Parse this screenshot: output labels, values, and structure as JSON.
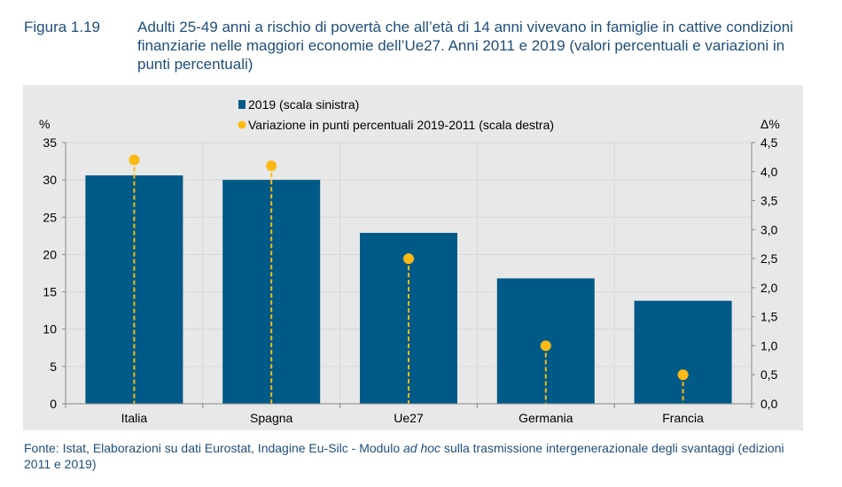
{
  "figure_label": "Figura 1.19",
  "title": "Adulti 25-49 anni a rischio di povertà che all’età di 14 anni vivevano in famiglie in cattive condizioni finanziarie nelle maggiori economie dell’Ue27. Anni 2011 e 2019 (valori percentuali e variazioni in punti percentuali)",
  "source_prefix": "Fonte: Istat, Elaborazioni su dati Eurostat, Indagine Eu-Silc - Modulo ",
  "source_italic": "ad hoc",
  "source_suffix": " sulla trasmissione intergenerazionale degli svantaggi (edizioni 2011 e 2019)",
  "chart_data": {
    "type": "bar+dot",
    "categories": [
      "Italia",
      "Spagna",
      "Ue27",
      "Germania",
      "Francia"
    ],
    "series": [
      {
        "name": "2019 (scala sinistra)",
        "type": "bar",
        "axis": "left",
        "values": [
          30.6,
          30.0,
          22.9,
          16.8,
          13.8
        ],
        "color": "#005a87"
      },
      {
        "name": "Variazione in punti percentuali 2019-2011 (scala destra)",
        "type": "dot",
        "axis": "right",
        "values": [
          4.2,
          4.1,
          2.5,
          1.0,
          0.5
        ],
        "color": "#fdb913"
      }
    ],
    "ylabel_left": "%",
    "ylabel_right": "Δ%",
    "ylim_left": [
      0,
      35
    ],
    "ylim_right": [
      0,
      4.5
    ],
    "yticks_left": [
      "0",
      "5",
      "10",
      "15",
      "20",
      "25",
      "30",
      "35"
    ],
    "yticks_right": [
      "0,0",
      "0,5",
      "1,0",
      "1,5",
      "2,0",
      "2,5",
      "3,0",
      "3,5",
      "4,0",
      "4,5"
    ],
    "grid": true,
    "legend_position": "top"
  }
}
